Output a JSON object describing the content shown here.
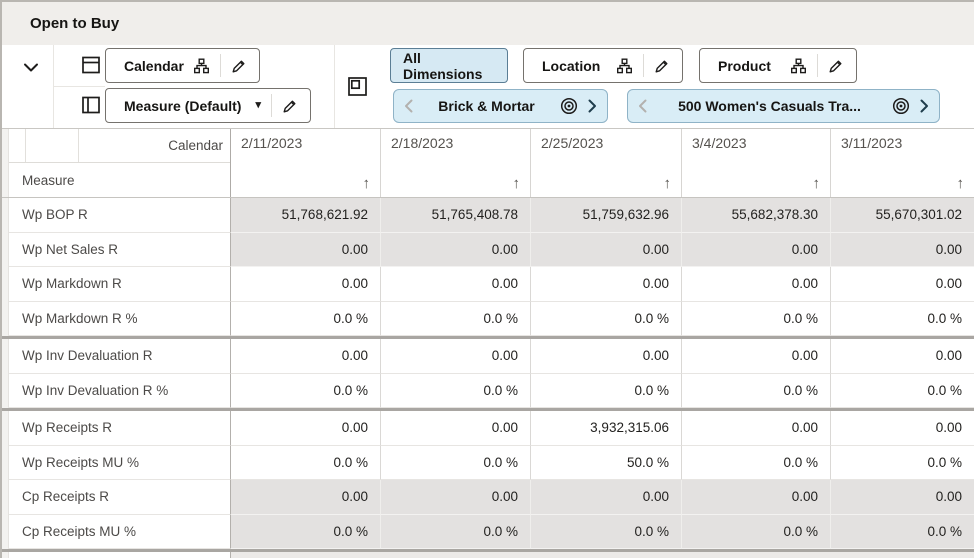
{
  "title": "Open to Buy",
  "toolbar": {
    "rows_tile_label": "Calendar",
    "columns_tile_label": "Measure (Default)",
    "all_dimensions_label": "All Dimensions",
    "location_tile_label": "Location",
    "product_tile_label": "Product",
    "location_filter_label": "Brick & Mortar",
    "product_filter_label": "500 Women's Casuals Tra...",
    "dropdown_caret": "▾"
  },
  "grid": {
    "column_dimension_label": "Calendar",
    "row_dimension_label": "Measure",
    "sort_icon": "↑",
    "columns": [
      "2/11/2023",
      "2/18/2023",
      "2/25/2023",
      "3/4/2023",
      "3/11/2023"
    ],
    "rows": [
      {
        "label": "Wp BOP R",
        "readonly": true,
        "values": [
          "51,768,621.92",
          "51,765,408.78",
          "51,759,632.96",
          "55,682,378.30",
          "55,670,301.02"
        ]
      },
      {
        "label": "Wp Net Sales R",
        "readonly": true,
        "values": [
          "0.00",
          "0.00",
          "0.00",
          "0.00",
          "0.00"
        ]
      },
      {
        "label": "Wp Markdown R",
        "values": [
          "0.00",
          "0.00",
          "0.00",
          "0.00",
          "0.00"
        ]
      },
      {
        "label": "Wp Markdown R %",
        "values": [
          "0.0 %",
          "0.0 %",
          "0.0 %",
          "0.0 %",
          "0.0 %"
        ]
      },
      {
        "label": "Wp Inv Devaluation R",
        "group_start": true,
        "values": [
          "0.00",
          "0.00",
          "0.00",
          "0.00",
          "0.00"
        ]
      },
      {
        "label": "Wp Inv Devaluation R %",
        "values": [
          "0.0 %",
          "0.0 %",
          "0.0 %",
          "0.0 %",
          "0.0 %"
        ]
      },
      {
        "label": "Wp Receipts R",
        "group_start": true,
        "values": [
          "0.00",
          "0.00",
          "3,932,315.06",
          "0.00",
          "0.00"
        ]
      },
      {
        "label": "Wp Receipts MU %",
        "values": [
          "0.0 %",
          "0.0 %",
          "50.0 %",
          "0.0 %",
          "0.0 %"
        ]
      },
      {
        "label": "Cp Receipts R",
        "readonly": true,
        "values": [
          "0.00",
          "0.00",
          "0.00",
          "0.00",
          "0.00"
        ]
      },
      {
        "label": "Cp Receipts MU %",
        "readonly": true,
        "values": [
          "0.0 %",
          "0.0 %",
          "0.0 %",
          "0.0 %",
          "0.0 %"
        ]
      }
    ]
  },
  "colors": {
    "titlebar": "#f0eeeb",
    "accent_fill": "#d9edf6",
    "accent_border": "#8fb3c7",
    "selected_fill": "#d6e9f3",
    "readonly_cell": "#e3e1e0",
    "separator": "#a9a6a2"
  }
}
